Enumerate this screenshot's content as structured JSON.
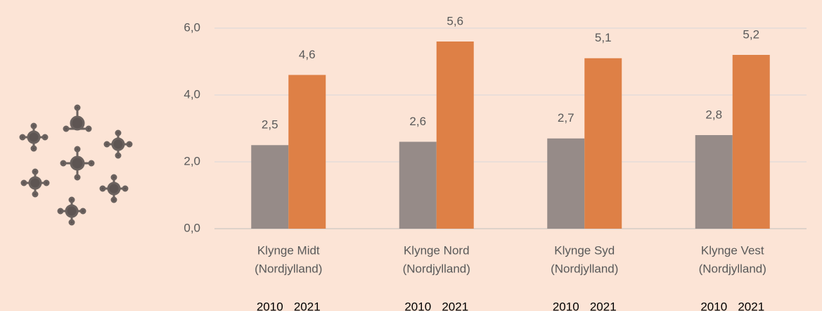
{
  "chart_data": {
    "type": "bar",
    "categories": [
      [
        "Klynge Midt",
        "(Nordjylland)"
      ],
      [
        "Klynge Nord",
        "(Nordjylland)"
      ],
      [
        "Klynge Syd",
        "(Nordjylland)"
      ],
      [
        "Klynge Vest",
        "(Nordjylland)"
      ]
    ],
    "series": [
      {
        "name": "2010",
        "color": "#968b88",
        "values": [
          2.5,
          2.6,
          2.7,
          2.8
        ],
        "value_labels": [
          "2,5",
          "2,6",
          "2,7",
          "2,8"
        ]
      },
      {
        "name": "2021",
        "color": "#de8046",
        "values": [
          4.6,
          5.6,
          5.1,
          5.2
        ],
        "value_labels": [
          "4,6",
          "5,6",
          "5,1",
          "5,2"
        ]
      }
    ],
    "ylim": [
      0,
      6
    ],
    "yticks": [
      {
        "value": 0,
        "label": "0,0"
      },
      {
        "value": 2,
        "label": "2,0"
      },
      {
        "value": 4,
        "label": "4,0"
      },
      {
        "value": 6,
        "label": "6,0"
      }
    ],
    "grid": true
  }
}
